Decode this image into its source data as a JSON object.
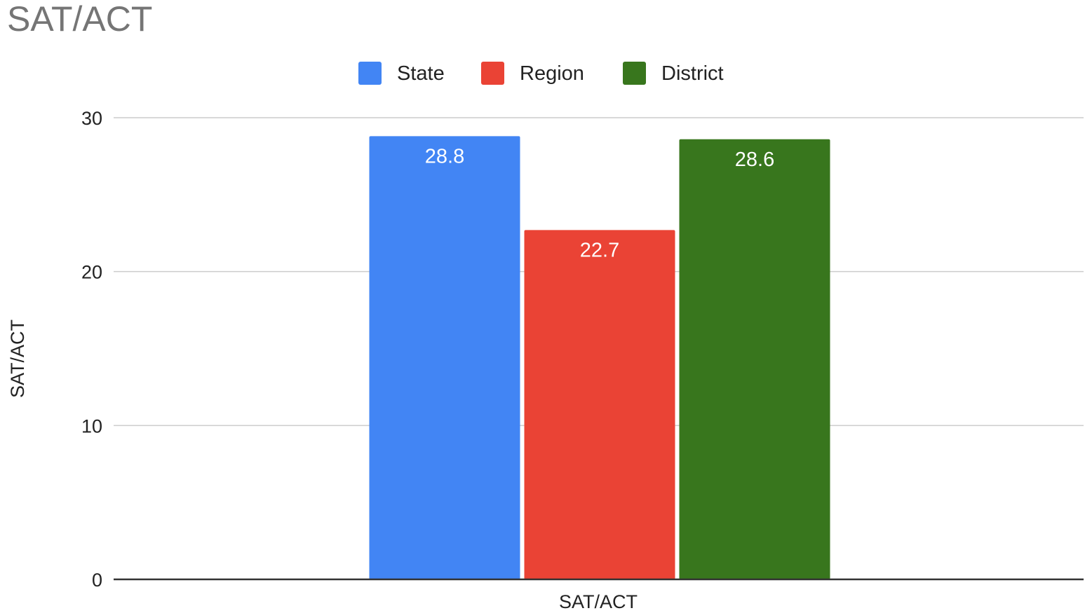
{
  "chart_data": {
    "type": "bar",
    "title": "SAT/ACT",
    "xlabel": "SAT/ACT",
    "ylabel": "SAT/ACT",
    "categories": [
      "SAT/ACT"
    ],
    "series": [
      {
        "name": "State",
        "values": [
          28.8
        ],
        "color": "#4285f4"
      },
      {
        "name": "Region",
        "values": [
          22.7
        ],
        "color": "#ea4335"
      },
      {
        "name": "District",
        "values": [
          28.6
        ],
        "color": "#38761d"
      }
    ],
    "data_labels": [
      "28.8",
      "22.7",
      "28.6"
    ],
    "ylim": [
      0,
      30
    ],
    "yticks": [
      0,
      10,
      20,
      30
    ],
    "ytick_labels": [
      "0",
      "10",
      "20",
      "30"
    ],
    "grid": true,
    "legend_position": "top"
  }
}
